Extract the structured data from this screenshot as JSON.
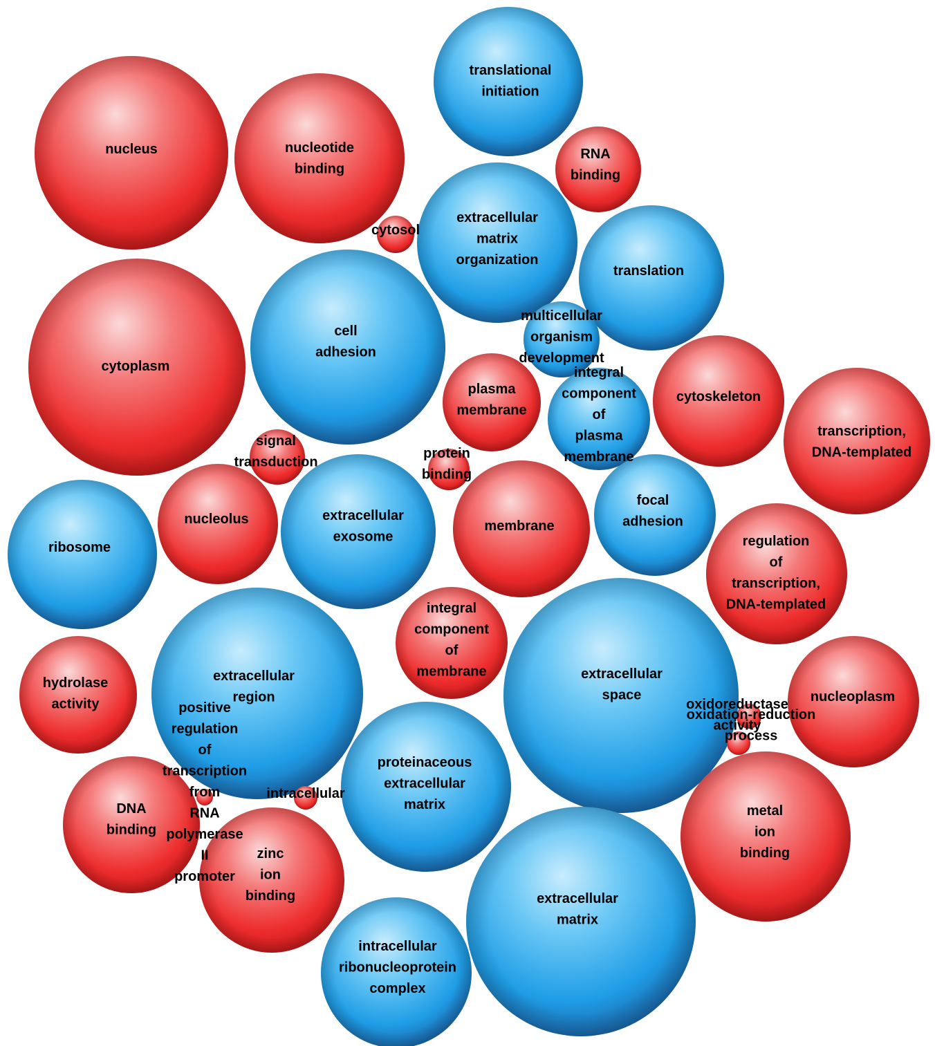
{
  "chart_data": {
    "type": "bubble",
    "title": "",
    "legend": [],
    "colors": {
      "red": "#ee2a2a",
      "blue": "#1e9be6"
    },
    "bubbles": [
      {
        "label": "translational initiation",
        "color": "blue"
      },
      {
        "label": "nucleus",
        "color": "red"
      },
      {
        "label": "nucleotide binding",
        "color": "red"
      },
      {
        "label": "RNA binding",
        "color": "red"
      },
      {
        "label": "cytosol",
        "color": "red"
      },
      {
        "label": "extracellular matrix organization",
        "color": "blue"
      },
      {
        "label": "translation",
        "color": "blue"
      },
      {
        "label": "cytoplasm",
        "color": "red"
      },
      {
        "label": "cell adhesion",
        "color": "blue"
      },
      {
        "label": "multicellular organism development",
        "color": "blue"
      },
      {
        "label": "plasma membrane",
        "color": "red"
      },
      {
        "label": "integral component of plasma membrane",
        "color": "blue"
      },
      {
        "label": "cytoskeleton",
        "color": "red"
      },
      {
        "label": "transcription, DNA-templated",
        "color": "red"
      },
      {
        "label": "signal transduction",
        "color": "red"
      },
      {
        "label": "protein binding",
        "color": "red"
      },
      {
        "label": "ribosome",
        "color": "blue"
      },
      {
        "label": "nucleolus",
        "color": "red"
      },
      {
        "label": "extracellular exosome",
        "color": "blue"
      },
      {
        "label": "membrane",
        "color": "red"
      },
      {
        "label": "focal adhesion",
        "color": "blue"
      },
      {
        "label": "regulation of transcription, DNA-templated",
        "color": "red"
      },
      {
        "label": "integral component of membrane",
        "color": "red"
      },
      {
        "label": "extracellular space",
        "color": "blue"
      },
      {
        "label": "hydrolase activity",
        "color": "red"
      },
      {
        "label": "extracellular region",
        "color": "blue"
      },
      {
        "label": "nucleoplasm",
        "color": "red"
      },
      {
        "label": "oxidoreductase activity",
        "color": "red"
      },
      {
        "label": "oxidation-reduction process",
        "color": "red"
      },
      {
        "label": "proteinaceous extracellular matrix",
        "color": "blue"
      },
      {
        "label": "positive regulation of transcription from RNA polymerase II promoter",
        "color": "red"
      },
      {
        "label": "intracellular",
        "color": "red"
      },
      {
        "label": "DNA binding",
        "color": "red"
      },
      {
        "label": "zinc ion binding",
        "color": "red"
      },
      {
        "label": "metal ion binding",
        "color": "red"
      },
      {
        "label": "extracellular matrix",
        "color": "blue"
      },
      {
        "label": "intracellular ribonucleoprotein complex",
        "color": "blue"
      }
    ]
  }
}
